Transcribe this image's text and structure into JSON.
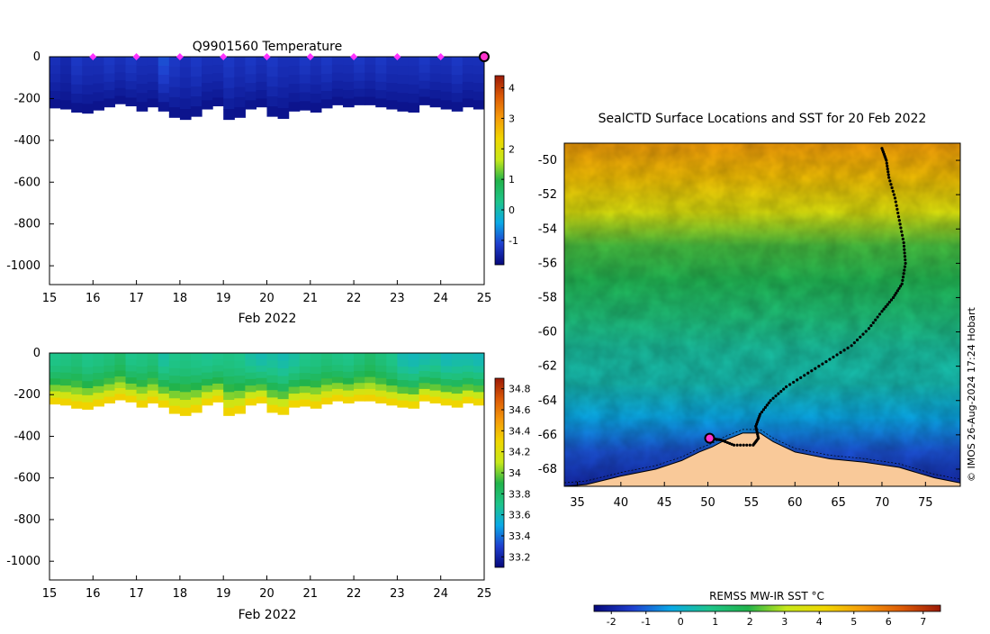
{
  "figure": {
    "credit": "© IMOS 26-Aug-2024 17:24 Hobart",
    "xticks": [
      "15",
      "16",
      "17",
      "18",
      "19",
      "20",
      "21",
      "22",
      "23",
      "24",
      "25"
    ],
    "depth_ticks": [
      "0",
      "-200",
      "-400",
      "-600",
      "-800",
      "-1000"
    ],
    "xlabel": "Feb 2022"
  },
  "chart_data": [
    {
      "id": "temperature",
      "type": "heatmap",
      "title": "Q9901560  Temperature",
      "xlabel": "Feb 2022",
      "xlim": [
        15,
        25
      ],
      "ylim": [
        -1090,
        0
      ],
      "profile_markers_days": [
        16,
        17,
        18,
        19,
        20,
        21,
        22,
        23,
        24
      ],
      "last_position_day": 25,
      "colorbar": {
        "ticks": [
          "4",
          "3",
          "2",
          "1",
          "0",
          "-1"
        ],
        "range": [
          -1.8,
          4.4
        ],
        "colormap": [
          "#06087a",
          "#1f3fcf",
          "#0aa9e6",
          "#1ec48b",
          "#21b34b",
          "#c7e81a",
          "#f0d600",
          "#f59a0a",
          "#dc5a06",
          "#9c1a07"
        ]
      },
      "profiles": {
        "days": [
          15.0,
          15.25,
          15.5,
          15.75,
          16.0,
          16.25,
          16.5,
          16.75,
          17.0,
          17.25,
          17.5,
          17.75,
          18.0,
          18.25,
          18.5,
          18.75,
          19.0,
          19.25,
          19.5,
          19.75,
          20.0,
          20.25,
          20.5,
          20.75,
          21.0,
          21.25,
          21.5,
          21.75,
          22.0,
          22.25,
          22.5,
          22.75,
          23.0,
          23.25,
          23.5,
          23.75,
          24.0,
          24.25,
          24.5,
          24.75
        ],
        "max_depth": [
          245,
          250,
          265,
          270,
          255,
          240,
          225,
          235,
          260,
          240,
          260,
          290,
          300,
          285,
          250,
          235,
          300,
          290,
          250,
          240,
          285,
          295,
          260,
          255,
          265,
          245,
          230,
          240,
          230,
          230,
          240,
          250,
          260,
          265,
          230,
          240,
          250,
          260,
          240,
          250
        ],
        "surface_temp": [
          -1.3,
          -1.4,
          -1.2,
          -1.3,
          -1.3,
          -1.2,
          -1.3,
          -1.2,
          -1.3,
          -1.3,
          -1.0,
          -1.2,
          -1.3,
          -1.2,
          -1.3,
          -1.3,
          -1.2,
          -1.3,
          -1.2,
          -1.3,
          -1.2,
          -1.3,
          -1.3,
          -1.2,
          -1.3,
          -1.2,
          -1.3,
          -1.3,
          -1.2,
          -1.3,
          -1.2,
          -1.3,
          -1.3,
          -1.3,
          -1.2,
          -1.3,
          -1.3,
          -1.2,
          -1.3,
          -1.3
        ],
        "deep_temp": -1.7
      }
    },
    {
      "id": "salinity",
      "type": "heatmap",
      "title": "",
      "xlabel": "Feb 2022",
      "xlim": [
        15,
        25
      ],
      "ylim": [
        -1090,
        0
      ],
      "colorbar": {
        "ticks": [
          "34.8",
          "34.6",
          "34.4",
          "34.2",
          "34",
          "33.8",
          "33.6",
          "33.4",
          "33.2"
        ],
        "range": [
          33.1,
          34.9
        ],
        "colormap": [
          "#06087a",
          "#1f3fcf",
          "#0aa9e6",
          "#1ec48b",
          "#21b34b",
          "#c7e81a",
          "#f0d600",
          "#f59a0a",
          "#dc5a06",
          "#9c1a07"
        ]
      },
      "profiles": {
        "surface_sal": [
          33.7,
          33.72,
          33.75,
          33.7,
          33.72,
          33.75,
          33.8,
          33.7,
          33.72,
          33.75,
          33.65,
          33.7,
          33.72,
          33.7,
          33.68,
          33.7,
          33.72,
          33.7,
          33.65,
          33.62,
          33.65,
          33.62,
          33.65,
          33.7,
          33.72,
          33.75,
          33.72,
          33.7,
          33.75,
          33.8,
          33.75,
          33.7,
          33.62,
          33.6,
          33.62,
          33.65,
          33.6,
          33.62,
          33.62,
          33.6
        ],
        "bottom_sal": 34.4
      }
    },
    {
      "id": "sst_map",
      "type": "heatmap",
      "title": "SealCTD Surface Locations and SST for 20 Feb 2022",
      "xlim": [
        33.5,
        79
      ],
      "ylim": [
        -69,
        -49
      ],
      "xticks": [
        "35",
        "40",
        "45",
        "50",
        "55",
        "60",
        "65",
        "70",
        "75"
      ],
      "yticks": [
        "-50",
        "-52",
        "-54",
        "-56",
        "-58",
        "-60",
        "-62",
        "-64",
        "-66",
        "-68"
      ],
      "colorbar_label": "REMSS MW-IR SST °C",
      "colorbar_ticks": [
        "-2",
        "-1",
        "0",
        "1",
        "2",
        "3",
        "4",
        "5",
        "6",
        "7"
      ],
      "colorbar_range": [
        -2.5,
        7.5
      ],
      "land_color": "#f9c999",
      "track": [
        [
          70,
          -49.3
        ],
        [
          70.5,
          -50.0
        ],
        [
          70.8,
          -51.0
        ],
        [
          71.5,
          -52.2
        ],
        [
          72.0,
          -53.5
        ],
        [
          72.5,
          -54.8
        ],
        [
          72.7,
          -56.0
        ],
        [
          72.3,
          -57.2
        ],
        [
          71.3,
          -58.0
        ],
        [
          70.0,
          -58.8
        ],
        [
          68.5,
          -59.8
        ],
        [
          66.5,
          -60.8
        ],
        [
          64.0,
          -61.6
        ],
        [
          61.5,
          -62.4
        ],
        [
          59.0,
          -63.2
        ],
        [
          57.2,
          -64.0
        ],
        [
          56.0,
          -64.8
        ],
        [
          55.5,
          -65.5
        ],
        [
          55.8,
          -66.2
        ],
        [
          55.2,
          -66.6
        ],
        [
          53.0,
          -66.6
        ],
        [
          51.5,
          -66.3
        ],
        [
          50.3,
          -66.2
        ]
      ],
      "current_position": [
        50.2,
        -66.2
      ]
    }
  ]
}
